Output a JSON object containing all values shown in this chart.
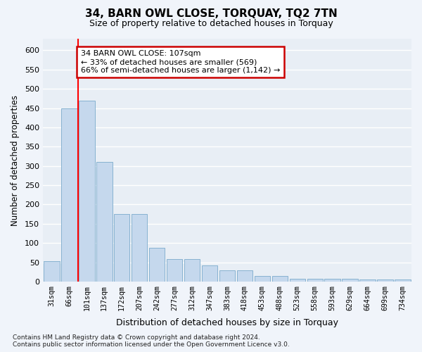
{
  "title": "34, BARN OWL CLOSE, TORQUAY, TQ2 7TN",
  "subtitle": "Size of property relative to detached houses in Torquay",
  "xlabel": "Distribution of detached houses by size in Torquay",
  "ylabel": "Number of detached properties",
  "categories": [
    "31sqm",
    "66sqm",
    "101sqm",
    "137sqm",
    "172sqm",
    "207sqm",
    "242sqm",
    "277sqm",
    "312sqm",
    "347sqm",
    "383sqm",
    "418sqm",
    "453sqm",
    "488sqm",
    "523sqm",
    "558sqm",
    "593sqm",
    "629sqm",
    "664sqm",
    "699sqm",
    "734sqm"
  ],
  "values": [
    53,
    450,
    470,
    310,
    175,
    175,
    88,
    58,
    58,
    42,
    30,
    30,
    14,
    14,
    8,
    8,
    8,
    8,
    5,
    5,
    5
  ],
  "bar_color": "#c5d8ed",
  "bar_edge_color": "#7aaacb",
  "red_line_index": 2,
  "annotation_text": "34 BARN OWL CLOSE: 107sqm\n← 33% of detached houses are smaller (569)\n66% of semi-detached houses are larger (1,142) →",
  "annotation_box_facecolor": "#ffffff",
  "annotation_box_edgecolor": "#cc0000",
  "ylim": [
    0,
    630
  ],
  "yticks": [
    0,
    50,
    100,
    150,
    200,
    250,
    300,
    350,
    400,
    450,
    500,
    550,
    600
  ],
  "fig_bg_color": "#f0f4fa",
  "axes_bg_color": "#e8eef5",
  "grid_color": "#ffffff",
  "footnote": "Contains HM Land Registry data © Crown copyright and database right 2024.\nContains public sector information licensed under the Open Government Licence v3.0."
}
